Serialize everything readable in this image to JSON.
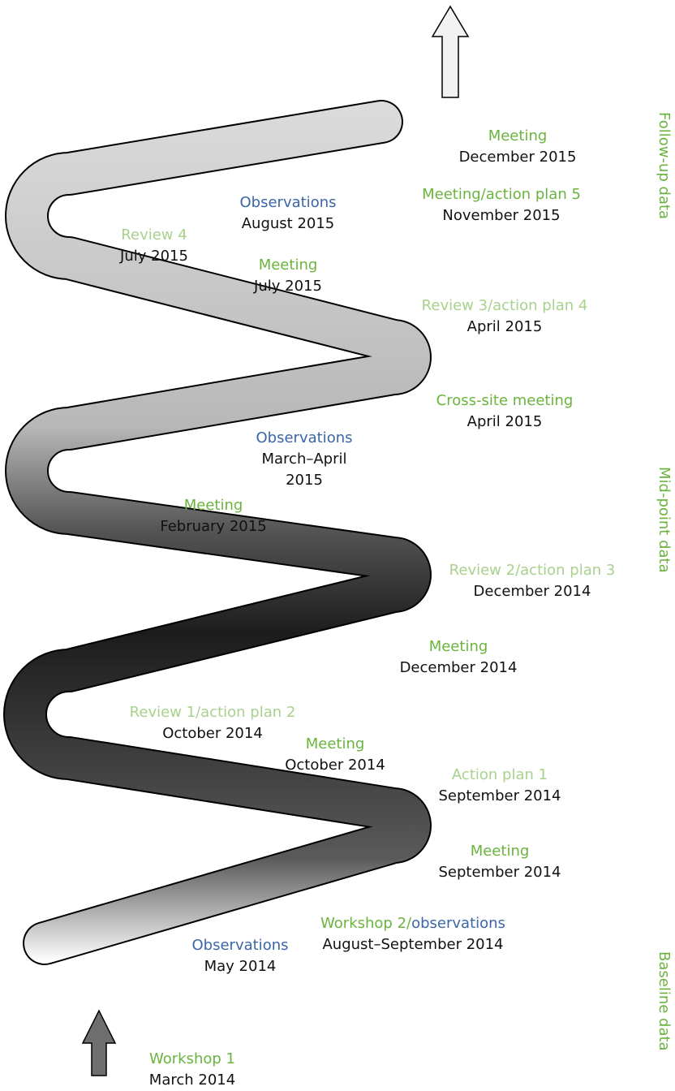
{
  "events": [
    {
      "title": [
        {
          "text": "Meeting",
          "color": "#6ab43e"
        }
      ],
      "date": "December 2015"
    },
    {
      "title": [
        {
          "text": "Observations",
          "color": "#3a66a7"
        }
      ],
      "date": "August 2015"
    },
    {
      "title": [
        {
          "text": "Meeting/action plan 5",
          "color": "#6ab43e"
        }
      ],
      "date": "November 2015"
    },
    {
      "title": [
        {
          "text": "Review 4",
          "color": "#a9d18e"
        }
      ],
      "date": "July 2015"
    },
    {
      "title": [
        {
          "text": "Meeting",
          "color": "#6ab43e"
        }
      ],
      "date": "July 2015"
    },
    {
      "title": [
        {
          "text": "Review 3/action plan 4",
          "color": "#a9d18e"
        }
      ],
      "date": "April 2015"
    },
    {
      "title": [
        {
          "text": "Cross-site meeting",
          "color": "#6ab43e"
        }
      ],
      "date": "April 2015"
    },
    {
      "title": [
        {
          "text": "Observations",
          "color": "#3a66a7"
        }
      ],
      "date": "March–April 2015"
    },
    {
      "title": [
        {
          "text": "Meeting",
          "color": "#6ab43e"
        }
      ],
      "date": "February 2015"
    },
    {
      "title": [
        {
          "text": "Review 2/action plan 3",
          "color": "#a9d18e"
        }
      ],
      "date": "December 2014"
    },
    {
      "title": [
        {
          "text": "Meeting",
          "color": "#6ab43e"
        }
      ],
      "date": "December 2014"
    },
    {
      "title": [
        {
          "text": "Review 1/action plan 2",
          "color": "#a9d18e"
        }
      ],
      "date": "October 2014"
    },
    {
      "title": [
        {
          "text": "Meeting",
          "color": "#6ab43e"
        }
      ],
      "date": "October 2014"
    },
    {
      "title": [
        {
          "text": "Action plan 1",
          "color": "#a9d18e"
        }
      ],
      "date": "September 2014"
    },
    {
      "title": [
        {
          "text": "Meeting",
          "color": "#6ab43e"
        }
      ],
      "date": "September 2014"
    },
    {
      "title": [
        {
          "text": "Workshop 2/",
          "color": "#6ab43e"
        },
        {
          "text": "observations",
          "color": "#3a66a7"
        }
      ],
      "date": "August–September 2014"
    },
    {
      "title": [
        {
          "text": "Observations",
          "color": "#3a66a7"
        }
      ],
      "date": "May 2014"
    },
    {
      "title": [
        {
          "text": "Workshop 1",
          "color": "#6ab43e"
        }
      ],
      "date": "March 2014"
    }
  ],
  "phases": [
    {
      "label": "Follow-up data",
      "color": "#6ab43e"
    },
    {
      "label": "Mid-point data",
      "color": "#6ab43e"
    },
    {
      "label": "Baseline data",
      "color": "#6ab43e"
    }
  ]
}
